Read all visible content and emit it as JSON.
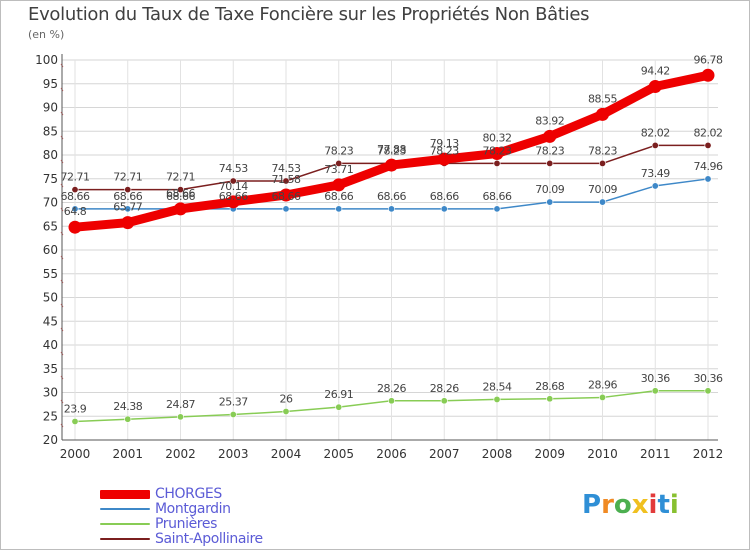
{
  "title": "Evolution du Taux de Taxe Foncière sur les Propriétés Non Bâties",
  "unit_label": "(en %)",
  "logo": {
    "letters": [
      "P",
      "r",
      "o",
      "x",
      "i",
      "t",
      "i"
    ],
    "colors": [
      "#2f8fd6",
      "#f08a24",
      "#4caf50",
      "#f0c020",
      "#e23b3b",
      "#2f8fd6",
      "#88c030"
    ]
  },
  "chart_data": {
    "type": "line",
    "title": "Evolution du Taux de Taxe Foncière sur les Propriétés Non Bâties",
    "ylabel": "(en %)",
    "xlabel": "",
    "x": [
      "2000",
      "2001",
      "2002",
      "2003",
      "2004",
      "2005",
      "2006",
      "2007",
      "2008",
      "2009",
      "2010",
      "2011",
      "2012"
    ],
    "ylim": [
      20,
      100
    ],
    "yticks": [
      "20",
      "25",
      "30",
      "35",
      "40",
      "45",
      "50",
      "55",
      "60",
      "65",
      "70",
      "75",
      "80",
      "85",
      "90",
      "95",
      "100"
    ],
    "grid": true,
    "legend": "bottom-left",
    "series": [
      {
        "name": "CHORGES",
        "color": "#ee0000",
        "values": [
          64.8,
          65.77,
          68.66,
          70.14,
          71.58,
          73.71,
          77.88,
          79.13,
          80.32,
          83.92,
          88.55,
          94.42,
          96.78
        ],
        "labels": [
          "64.8",
          "65.77",
          "68.66",
          "70.14",
          "71.58",
          "73.71",
          "77.88",
          "79.13",
          "80.32",
          "83.92",
          "88.55",
          "94.42",
          "96.78"
        ]
      },
      {
        "name": "Montgardin",
        "color": "#3e88c8",
        "values": [
          68.66,
          68.66,
          68.66,
          68.66,
          68.66,
          68.66,
          68.66,
          68.66,
          68.66,
          70.09,
          70.09,
          73.49,
          74.96
        ],
        "labels": [
          "68.66",
          "68.66",
          "68.66",
          "68.66",
          "68.66",
          "68.66",
          "68.66",
          "68.66",
          "68.66",
          "70.09",
          "70.09",
          "73.49",
          "74.96"
        ]
      },
      {
        "name": "Prunières",
        "color": "#88cc55",
        "values": [
          23.9,
          24.38,
          24.87,
          25.37,
          26,
          26.91,
          28.26,
          28.26,
          28.54,
          28.68,
          28.96,
          30.36,
          30.36
        ],
        "labels": [
          "23.9",
          "24.38",
          "24.87",
          "25.37",
          "26",
          "26.91",
          "28.26",
          "28.26",
          "28.54",
          "28.68",
          "28.96",
          "30.36",
          "30.36"
        ]
      },
      {
        "name": "Saint-Apollinaire",
        "color": "#7b1f1f",
        "values": [
          72.71,
          72.71,
          72.71,
          74.53,
          74.53,
          78.23,
          78.23,
          78.23,
          78.23,
          78.23,
          78.23,
          82.02,
          82.02
        ],
        "labels": [
          "72.71",
          "72.71",
          "72.71",
          "74.53",
          "74.53",
          "78.23",
          "78.23",
          "78.23",
          "78.23",
          "78.23",
          "78.23",
          "82.02",
          "82.02"
        ]
      }
    ]
  }
}
